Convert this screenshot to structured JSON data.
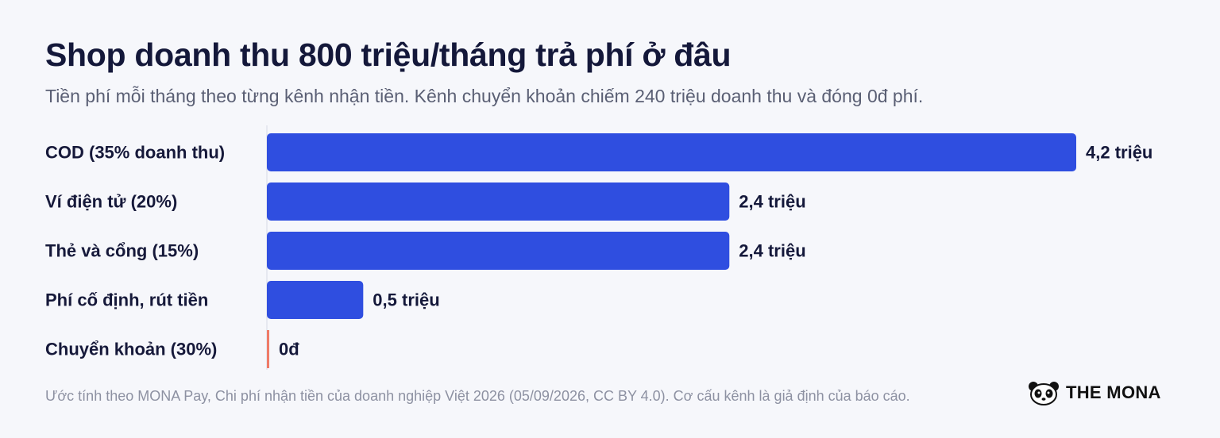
{
  "title": "Shop doanh thu 800 triệu/tháng trả phí ở đâu",
  "subtitle": "Tiền phí mỗi tháng theo từng kênh nhận tiền. Kênh chuyển khoản chiếm 240 triệu doanh thu và đóng 0đ phí.",
  "footer": "Ước tính theo MONA Pay, Chi phí nhận tiền của doanh nghiệp Việt 2026 (05/09/2026, CC BY 4.0). Cơ cấu kênh là giả định của báo cáo.",
  "brand": {
    "name": "THE MONA",
    "icon": "panda-logo-icon"
  },
  "colors": {
    "bar": "#2f4ee0",
    "zero_bar": "#ef7b68",
    "axis": "#d7dae5",
    "label": "#16193a",
    "value": "#14183a"
  },
  "chart_data": {
    "type": "bar",
    "orientation": "horizontal",
    "categories": [
      "COD (35% doanh thu)",
      "Ví điện tử (20%)",
      "Thẻ và cổng (15%)",
      "Phí cố định, rút tiền",
      "Chuyển khoản (30%)"
    ],
    "values": [
      4.2,
      2.4,
      2.4,
      0.5,
      0
    ],
    "value_labels": [
      "4,2 triệu",
      "2,4 triệu",
      "2,4 triệu",
      "0,5 triệu",
      "0đ"
    ],
    "unit": "triệu đồng",
    "xlim": [
      0,
      4.2
    ],
    "grid": false,
    "title": "Shop doanh thu 800 triệu/tháng trả phí ở đâu",
    "subtitle": "Tiền phí mỗi tháng theo từng kênh nhận tiền. Kênh chuyển khoản chiếm 240 triệu doanh thu và đóng 0đ phí.",
    "xlabel": "",
    "ylabel": ""
  }
}
